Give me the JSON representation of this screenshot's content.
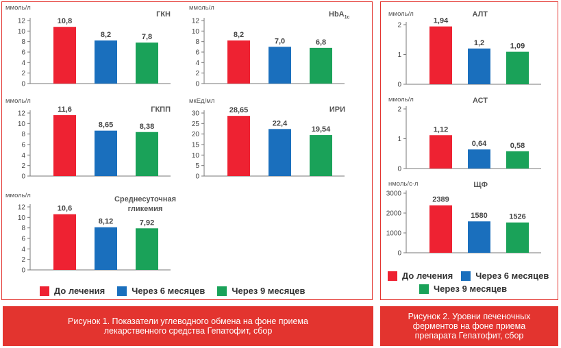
{
  "colors": {
    "before": "#ee2232",
    "m6": "#1a6fbd",
    "m9": "#1aa259",
    "frame": "#e3342f",
    "axis": "#777777"
  },
  "chart_data": [
    {
      "id": "gkn",
      "type": "bar",
      "title": "ГКН",
      "subtitle": "",
      "unit": "ммоль/л",
      "values": [
        10.8,
        8.2,
        7.8
      ],
      "labels": [
        "10,8",
        "8,2",
        "7,8"
      ],
      "yticks": [
        0,
        2,
        4,
        6,
        8,
        10,
        12
      ],
      "ylim": [
        0,
        12
      ]
    },
    {
      "id": "hba1c",
      "type": "bar",
      "title": "HbA",
      "subtitle": "1c",
      "unit": "ммоль/л",
      "values": [
        8.2,
        7.0,
        6.8
      ],
      "labels": [
        "8,2",
        "7,0",
        "6,8"
      ],
      "yticks": [
        0,
        2,
        4,
        6,
        8,
        10,
        12
      ],
      "ylim": [
        0,
        12
      ]
    },
    {
      "id": "gkpp",
      "type": "bar",
      "title": "ГКПП",
      "subtitle": "",
      "unit": "ммоль/л",
      "values": [
        11.6,
        8.65,
        8.38
      ],
      "labels": [
        "11,6",
        "8,65",
        "8,38"
      ],
      "yticks": [
        0,
        2,
        4,
        6,
        8,
        10,
        12
      ],
      "ylim": [
        0,
        12
      ]
    },
    {
      "id": "iri",
      "type": "bar",
      "title": "ИРИ",
      "subtitle": "",
      "unit": "мкЕд/мл",
      "values": [
        28.65,
        22.4,
        19.54
      ],
      "labels": [
        "28,65",
        "22,4",
        "19,54"
      ],
      "yticks": [
        0,
        5,
        10,
        15,
        20,
        25,
        30
      ],
      "ylim": [
        0,
        30
      ]
    },
    {
      "id": "glyc",
      "type": "bar",
      "title": "Среднесуточная\nгликемия",
      "subtitle": "",
      "unit": "ммоль/л",
      "values": [
        10.6,
        8.12,
        7.92
      ],
      "labels": [
        "10,6",
        "8,12",
        "7,92"
      ],
      "yticks": [
        0,
        2,
        4,
        6,
        8,
        10,
        12
      ],
      "ylim": [
        0,
        12
      ]
    },
    {
      "id": "alt",
      "type": "bar",
      "title": "АЛТ",
      "subtitle": "",
      "unit": "ммоль/л",
      "values": [
        1.94,
        1.2,
        1.09
      ],
      "labels": [
        "1,94",
        "1,2",
        "1,09"
      ],
      "yticks": [
        0,
        1,
        2
      ],
      "ylim": [
        0,
        2
      ]
    },
    {
      "id": "ast",
      "type": "bar",
      "title": "АСТ",
      "subtitle": "",
      "unit": "ммоль/л",
      "values": [
        1.12,
        0.64,
        0.58
      ],
      "labels": [
        "1,12",
        "0,64",
        "0,58"
      ],
      "yticks": [
        0,
        1,
        2
      ],
      "ylim": [
        0,
        2
      ]
    },
    {
      "id": "shf",
      "type": "bar",
      "title": "ЩФ",
      "subtitle": "",
      "unit": "нмоль/с-л",
      "values": [
        2389,
        1580,
        1526
      ],
      "labels": [
        "2389",
        "1580",
        "1526"
      ],
      "yticks": [
        0,
        1000,
        2000,
        3000
      ],
      "ylim": [
        0,
        3000
      ]
    }
  ],
  "legend": {
    "before": "До лечения",
    "m6": "Через 6 месяцев",
    "m9": "Через 9 месяцев"
  },
  "captions": {
    "fig1_line1": "Рисунок 1.  Показатели углеводного обмена на фоне приема",
    "fig1_line2": "лекарственного средства Гепатофит, сбор",
    "fig2_line1": "Рисунок 2.  Уровни печеночных",
    "fig2_line2": "ферментов на фоне приема",
    "fig2_line3": "препарата Гепатофит, сбор"
  }
}
